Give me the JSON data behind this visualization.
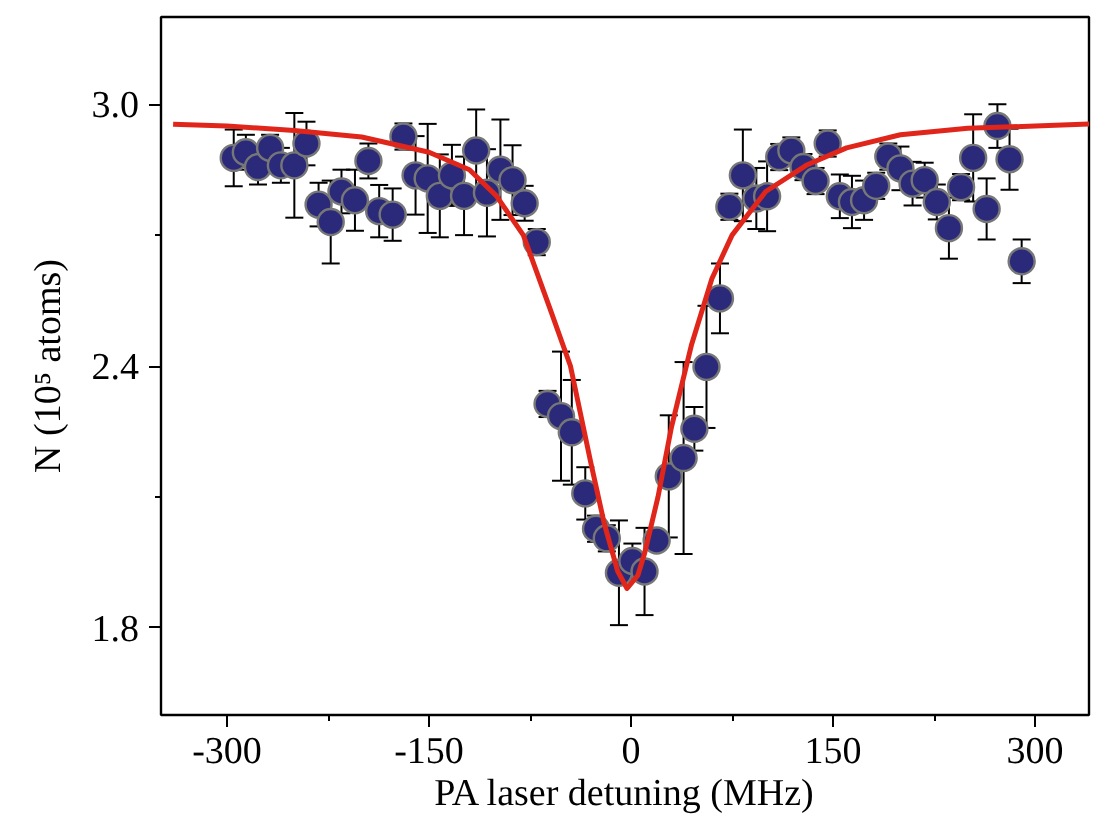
{
  "chart_data": {
    "type": "scatter",
    "xlabel": "PA laser detuning (MHz)",
    "ylabel": "N (10⁵ atoms)",
    "xlim": [
      -349,
      340
    ],
    "ylim": [
      1.6,
      3.2
    ],
    "xticks": [
      -300,
      {
        "value": -225,
        "label": null
      },
      -150,
      {
        "value": -75,
        "label": null
      },
      0,
      {
        "value": 75,
        "label": null
      },
      150,
      {
        "value": 225,
        "label": null
      },
      300
    ],
    "yticks": [
      {
        "value": 1.8,
        "label": "1.8"
      },
      {
        "value": 2.1,
        "label": null
      },
      {
        "value": 2.4,
        "label": "2.4"
      },
      {
        "value": 2.7,
        "label": null
      },
      {
        "value": 3.0,
        "label": "3.0"
      }
    ],
    "grid": false,
    "series": [
      {
        "color": "#2b2a7a",
        "marker": "circle",
        "x": [
          -295,
          -286,
          -277,
          -268,
          -260,
          -250,
          -241,
          -232,
          -223,
          -215,
          -205,
          -195,
          -187,
          -177,
          -169,
          -160,
          -151,
          -142,
          -133,
          -124,
          -115,
          -107,
          -97,
          -88,
          -79,
          -70,
          -62,
          -52,
          -44,
          -34,
          -26,
          -18,
          -9,
          1,
          10,
          19,
          28,
          39,
          47,
          56,
          66,
          73,
          83,
          93,
          101,
          110,
          119,
          128,
          137,
          146,
          155,
          164,
          173,
          182,
          191,
          200,
          209,
          218,
          227,
          236,
          245,
          254,
          264,
          272,
          281,
          290
        ],
        "values": [
          2.877,
          2.89,
          2.856,
          2.9,
          2.86,
          2.86,
          2.91,
          2.77,
          2.73,
          2.8,
          2.78,
          2.87,
          2.755,
          2.747,
          2.926,
          2.837,
          2.83,
          2.79,
          2.837,
          2.79,
          2.894,
          2.797,
          2.85,
          2.826,
          2.773,
          2.684,
          2.313,
          2.285,
          2.248,
          2.108,
          2.027,
          2.005,
          1.926,
          1.953,
          1.929,
          2.0,
          2.147,
          2.189,
          2.256,
          2.398,
          2.555,
          2.765,
          2.837,
          2.784,
          2.789,
          2.879,
          2.894,
          2.856,
          2.824,
          2.91,
          2.789,
          2.776,
          2.78,
          2.813,
          2.88,
          2.853,
          2.818,
          2.826,
          2.776,
          2.716,
          2.81,
          2.877,
          2.76,
          2.95,
          2.874,
          2.64
        ],
        "errors": [
          0.065,
          0.04,
          0.04,
          0.03,
          0.04,
          0.12,
          0.05,
          0.05,
          0.095,
          0.05,
          0.07,
          0.04,
          0.06,
          0.06,
          0.03,
          0.09,
          0.125,
          0.095,
          0.07,
          0.09,
          0.094,
          0.1,
          0.115,
          0.08,
          0.04,
          0.03,
          0.03,
          0.148,
          0.12,
          0.06,
          0.03,
          0.03,
          0.12,
          0.04,
          0.1,
          0.02,
          0.14,
          0.22,
          0.05,
          0.14,
          0.08,
          0.03,
          0.105,
          0.07,
          0.08,
          0.03,
          0.03,
          0.03,
          0.03,
          0.03,
          0.05,
          0.06,
          0.045,
          0.03,
          0.03,
          0.05,
          0.05,
          0.04,
          0.04,
          0.07,
          0.03,
          0.1,
          0.07,
          0.05,
          0.07,
          0.05
        ]
      },
      {
        "type": "line",
        "color": "#e0261b",
        "line_style": "solid",
        "marker": "none",
        "x": [
          -340,
          -300,
          -250,
          -200,
          -150,
          -120,
          -100,
          -80,
          -60,
          -45,
          -30,
          -20,
          -10,
          -3,
          5,
          10,
          20,
          30,
          45,
          60,
          75,
          100,
          130,
          160,
          200,
          250,
          300,
          340
        ],
        "values": [
          2.954,
          2.95,
          2.94,
          2.925,
          2.89,
          2.85,
          2.79,
          2.7,
          2.53,
          2.4,
          2.18,
          2.04,
          1.93,
          1.89,
          1.92,
          1.97,
          2.1,
          2.26,
          2.45,
          2.6,
          2.7,
          2.8,
          2.86,
          2.9,
          2.93,
          2.945,
          2.95,
          2.955
        ]
      }
    ]
  }
}
